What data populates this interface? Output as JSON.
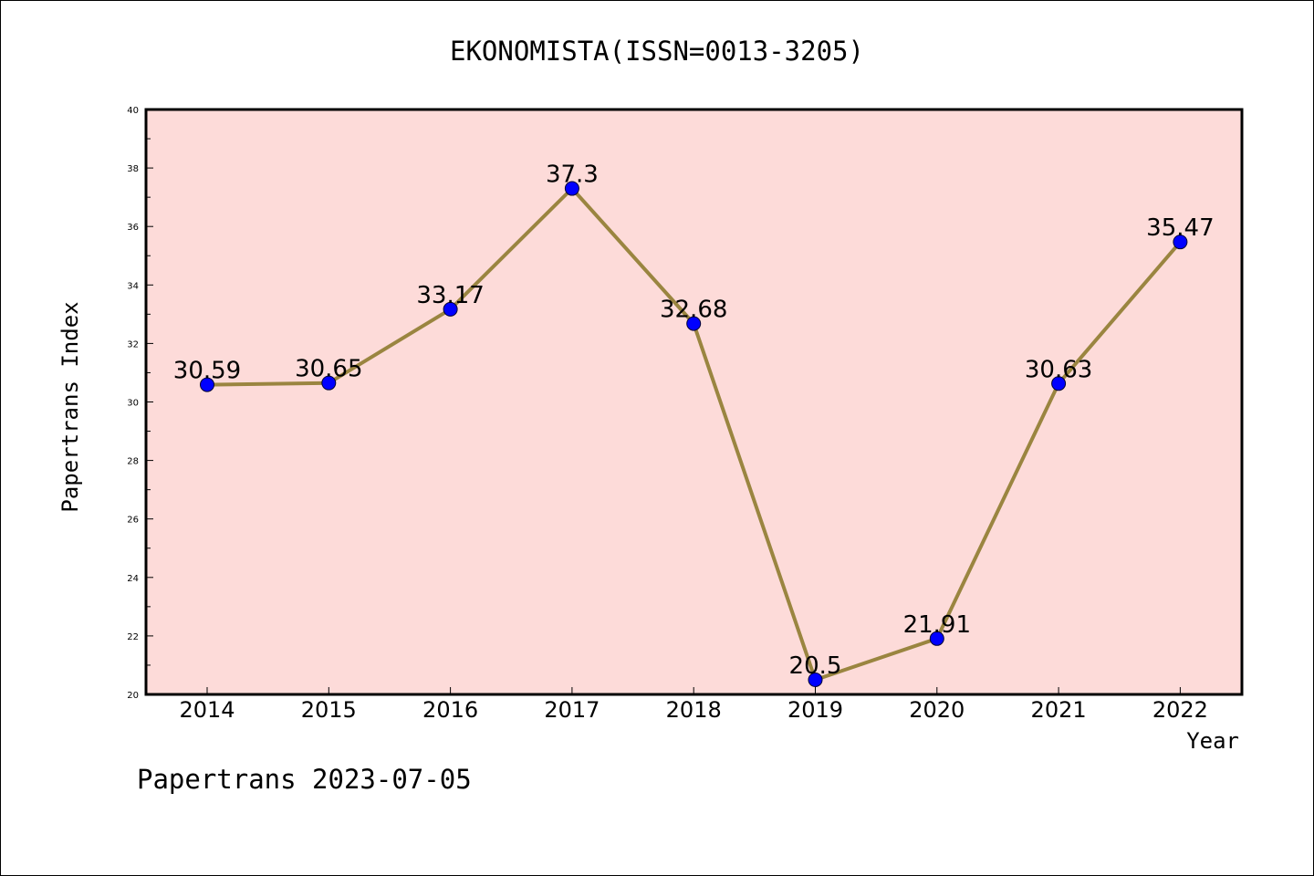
{
  "chart_data": {
    "type": "line",
    "title": "EKONOMISTA(ISSN=0013-3205)",
    "xlabel": "Year",
    "ylabel": "Papertrans Index",
    "x": [
      "2014",
      "2015",
      "2016",
      "2017",
      "2018",
      "2019",
      "2020",
      "2021",
      "2022"
    ],
    "series": [
      {
        "values": [
          30.59,
          30.65,
          33.17,
          37.3,
          32.68,
          20.5,
          21.91,
          30.63,
          35.47
        ],
        "labels": [
          "30.59",
          "30.65",
          "33.17",
          "37.3",
          "32.68",
          "20.5",
          "21.91",
          "30.63",
          "35.47"
        ]
      }
    ],
    "ylim": [
      20,
      40
    ],
    "yticks": [
      "20",
      "22",
      "24",
      "26",
      "28",
      "30",
      "32",
      "34",
      "36",
      "38",
      "40"
    ],
    "grid": false,
    "colors": {
      "plot_background": "#fddbd9",
      "line": "#9a8540",
      "marker": "#0000ff"
    }
  },
  "footer": "Papertrans 2023-07-05"
}
